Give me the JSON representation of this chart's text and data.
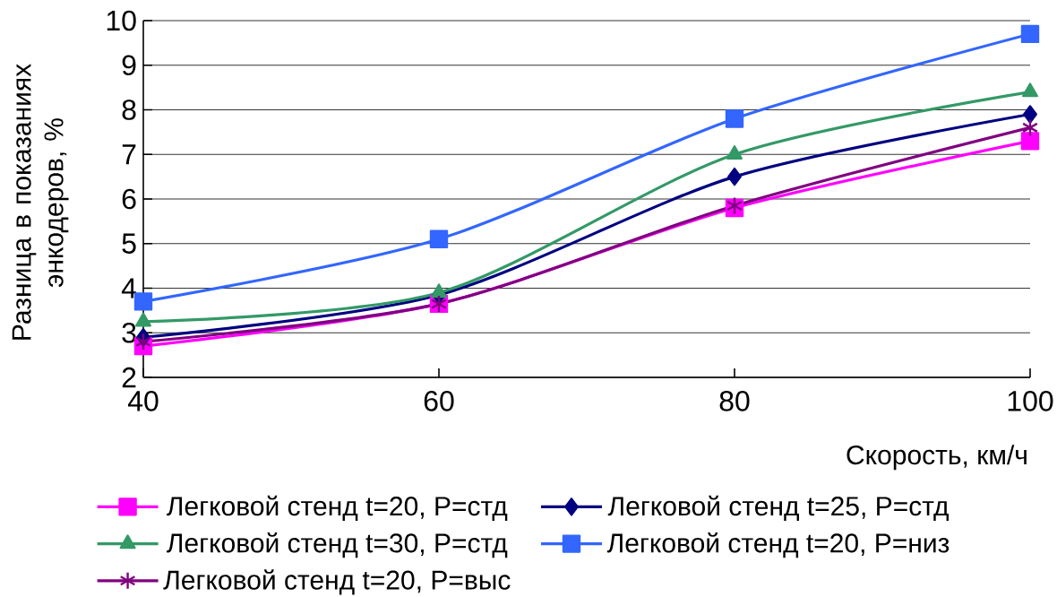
{
  "chart_data": {
    "type": "line",
    "xlabel": "Скорость, км/ч",
    "ylabel": "Разница в показаниях энкодеров, %",
    "x": [
      40,
      60,
      80,
      100
    ],
    "xlim": [
      40,
      100
    ],
    "xticks": [
      40,
      60,
      80,
      100
    ],
    "ylim": [
      2,
      10
    ],
    "yticks": [
      2,
      3,
      4,
      5,
      6,
      7,
      8,
      9,
      10
    ],
    "grid": "y",
    "legend": "bottom",
    "line_style": "solid",
    "series": [
      {
        "name": "Легковой стенд t=20, P=стд",
        "color": "#ff00ff",
        "marker": "square",
        "values": [
          2.7,
          3.65,
          5.8,
          7.3
        ]
      },
      {
        "name": "Легковой стенд t=25, P=стд",
        "color": "#000080",
        "marker": "diamond",
        "values": [
          2.9,
          3.85,
          6.5,
          7.9
        ]
      },
      {
        "name": "Легковой стенд t=30, P=стд",
        "color": "#339966",
        "marker": "triangle",
        "values": [
          3.25,
          3.9,
          7.0,
          8.4
        ]
      },
      {
        "name": "Легковой стенд t=20, P=низ",
        "color": "#3366ff",
        "marker": "square",
        "values": [
          3.7,
          5.1,
          7.8,
          9.7
        ]
      },
      {
        "name": "Легковой стенд t=20, P=выс",
        "color": "#800080",
        "marker": "cross",
        "values": [
          2.8,
          3.65,
          5.85,
          7.6
        ]
      }
    ]
  }
}
